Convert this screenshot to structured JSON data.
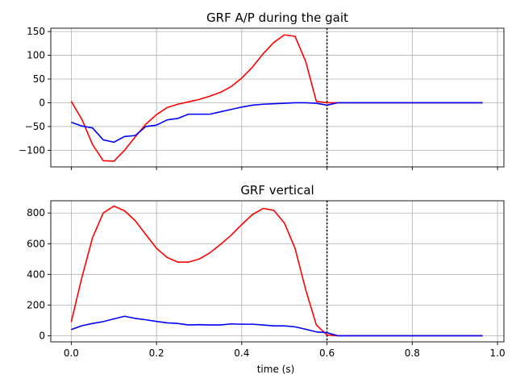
{
  "chart_data": [
    {
      "type": "line",
      "title": "GRF A/P  during the gait",
      "xlabel": "",
      "ylabel": "",
      "xlim": [
        -0.048,
        1.015
      ],
      "ylim": [
        -135,
        157
      ],
      "xticks": [
        0.0,
        0.2,
        0.4,
        0.6,
        0.8,
        1.0
      ],
      "xtick_labels_visible": false,
      "yticks": [
        -100,
        -50,
        0,
        50,
        100,
        150
      ],
      "ytick_labels": [
        "−100",
        "−50",
        "0",
        "50",
        "100",
        "150"
      ],
      "grid": true,
      "vline": {
        "x": 0.6,
        "style": "dotted",
        "color": "#000000"
      },
      "series": [
        {
          "color": "#ff0000",
          "x": [
            0.0,
            0.025,
            0.05,
            0.075,
            0.1,
            0.125,
            0.15,
            0.175,
            0.2,
            0.225,
            0.25,
            0.275,
            0.3,
            0.325,
            0.35,
            0.375,
            0.4,
            0.425,
            0.45,
            0.475,
            0.5,
            0.525,
            0.55,
            0.575,
            0.6,
            0.625,
            0.65,
            0.675,
            0.7,
            0.725,
            0.75,
            0.775,
            0.8,
            0.825,
            0.85,
            0.875,
            0.9,
            0.925,
            0.95,
            0.965
          ],
          "y": [
            3,
            -35,
            -88,
            -122,
            -123,
            -100,
            -72,
            -45,
            -25,
            -10,
            -3,
            2,
            7,
            14,
            22,
            34,
            52,
            75,
            103,
            127,
            143,
            140,
            87,
            3,
            0,
            0,
            0,
            0,
            0,
            0,
            0,
            0,
            0,
            0,
            0,
            0,
            0,
            0,
            0,
            0
          ]
        },
        {
          "color": "#0000ff",
          "x": [
            0.0,
            0.025,
            0.05,
            0.075,
            0.1,
            0.125,
            0.15,
            0.175,
            0.2,
            0.225,
            0.25,
            0.275,
            0.3,
            0.325,
            0.35,
            0.375,
            0.4,
            0.425,
            0.45,
            0.475,
            0.5,
            0.525,
            0.55,
            0.575,
            0.6,
            0.625,
            0.65,
            0.675,
            0.7,
            0.725,
            0.75,
            0.775,
            0.8,
            0.825,
            0.85,
            0.875,
            0.9,
            0.925,
            0.95,
            0.965
          ],
          "y": [
            -41,
            -49,
            -53,
            -78,
            -83,
            -71,
            -69,
            -50,
            -47,
            -36,
            -33,
            -24,
            -24,
            -24,
            -19,
            -14,
            -9,
            -5,
            -3,
            -2,
            -1,
            0,
            0,
            -1,
            -5,
            0,
            0,
            0,
            0,
            0,
            0,
            0,
            0,
            0,
            0,
            0,
            0,
            0,
            0,
            0
          ]
        }
      ]
    },
    {
      "type": "line",
      "title": "GRF vertical",
      "xlabel": "time (s)",
      "ylabel": "",
      "xlim": [
        -0.048,
        1.015
      ],
      "ylim": [
        -40,
        880
      ],
      "xticks": [
        0.0,
        0.2,
        0.4,
        0.6,
        0.8,
        1.0
      ],
      "xtick_labels": [
        "0.0",
        "0.2",
        "0.4",
        "0.6",
        "0.8",
        "1.0"
      ],
      "yticks": [
        0,
        200,
        400,
        600,
        800
      ],
      "ytick_labels": [
        "0",
        "200",
        "400",
        "600",
        "800"
      ],
      "grid": true,
      "vline": {
        "x": 0.6,
        "style": "dotted",
        "color": "#000000"
      },
      "series": [
        {
          "color": "#ff0000",
          "x": [
            0.0,
            0.025,
            0.05,
            0.075,
            0.1,
            0.125,
            0.15,
            0.175,
            0.2,
            0.225,
            0.25,
            0.275,
            0.3,
            0.325,
            0.35,
            0.375,
            0.4,
            0.425,
            0.45,
            0.475,
            0.5,
            0.525,
            0.55,
            0.575,
            0.6,
            0.625,
            0.65,
            0.675,
            0.7,
            0.725,
            0.75,
            0.775,
            0.8,
            0.825,
            0.85,
            0.875,
            0.9,
            0.925,
            0.95,
            0.965
          ],
          "y": [
            90,
            380,
            640,
            800,
            845,
            815,
            750,
            660,
            570,
            510,
            480,
            480,
            500,
            540,
            595,
            655,
            725,
            790,
            830,
            818,
            735,
            570,
            300,
            70,
            5,
            0,
            0,
            0,
            0,
            0,
            0,
            0,
            0,
            0,
            0,
            0,
            0,
            0,
            0,
            0
          ]
        },
        {
          "color": "#0000ff",
          "x": [
            0.0,
            0.025,
            0.05,
            0.075,
            0.1,
            0.125,
            0.15,
            0.175,
            0.2,
            0.225,
            0.25,
            0.275,
            0.3,
            0.325,
            0.35,
            0.375,
            0.4,
            0.425,
            0.45,
            0.475,
            0.5,
            0.525,
            0.55,
            0.575,
            0.6,
            0.625,
            0.65,
            0.675,
            0.7,
            0.725,
            0.75,
            0.775,
            0.8,
            0.825,
            0.85,
            0.875,
            0.9,
            0.925,
            0.95,
            0.965
          ],
          "y": [
            40,
            65,
            80,
            92,
            110,
            127,
            113,
            104,
            93,
            84,
            80,
            70,
            72,
            70,
            70,
            77,
            75,
            75,
            70,
            64,
            64,
            58,
            42,
            25,
            20,
            0,
            0,
            0,
            0,
            0,
            0,
            0,
            0,
            0,
            0,
            0,
            0,
            0,
            0,
            0
          ]
        }
      ]
    }
  ]
}
